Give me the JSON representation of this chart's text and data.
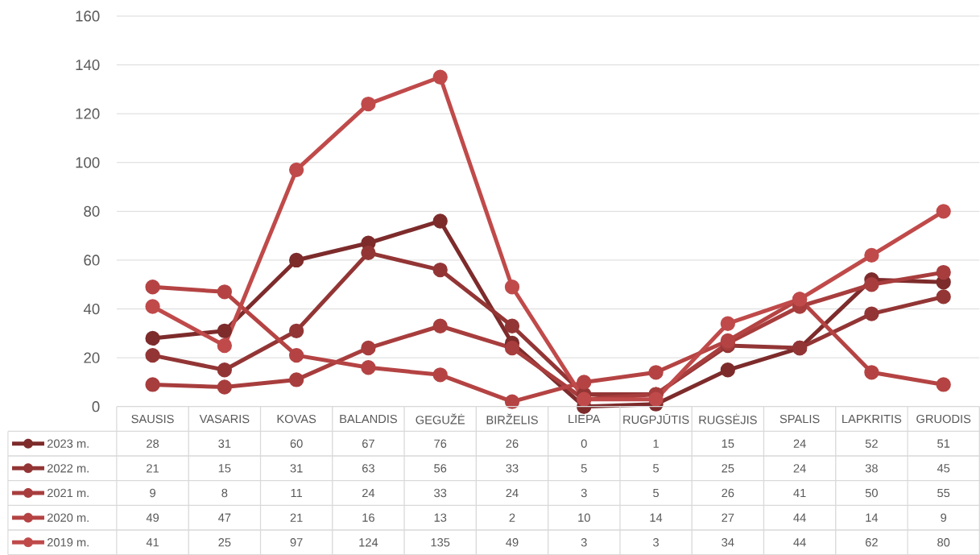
{
  "chart_data": {
    "type": "line",
    "categories": [
      "SAUSIS",
      "VASARIS",
      "KOVAS",
      "BALANDIS",
      "GEGUŽĖ",
      "BIRŽELIS",
      "LIEPA",
      "RUGPJŪTIS",
      "RUGSĖJIS",
      "SPALIS",
      "LAPKRITIS",
      "GRUODIS"
    ],
    "series": [
      {
        "name": "2023 m.",
        "color": "#7d2b2b",
        "values": [
          28,
          31,
          60,
          67,
          76,
          26,
          0,
          1,
          15,
          24,
          52,
          51
        ]
      },
      {
        "name": "2022 m.",
        "color": "#933535",
        "values": [
          21,
          15,
          31,
          63,
          56,
          33,
          5,
          5,
          25,
          24,
          38,
          45
        ]
      },
      {
        "name": "2021 m.",
        "color": "#a83d3d",
        "values": [
          9,
          8,
          11,
          24,
          33,
          24,
          3,
          5,
          26,
          41,
          50,
          55
        ]
      },
      {
        "name": "2020 m.",
        "color": "#b54343",
        "values": [
          49,
          47,
          21,
          16,
          13,
          2,
          10,
          14,
          27,
          44,
          14,
          9
        ]
      },
      {
        "name": "2019 m.",
        "color": "#c04a4a",
        "values": [
          41,
          25,
          97,
          124,
          135,
          49,
          3,
          3,
          34,
          44,
          62,
          80
        ]
      }
    ],
    "ylim": [
      0,
      160
    ],
    "yticks": [
      0,
      20,
      40,
      60,
      80,
      100,
      120,
      140,
      160
    ],
    "grid": "y",
    "legend": "bottom",
    "data_labels": true,
    "marker": "circle",
    "line_style": "solid"
  }
}
